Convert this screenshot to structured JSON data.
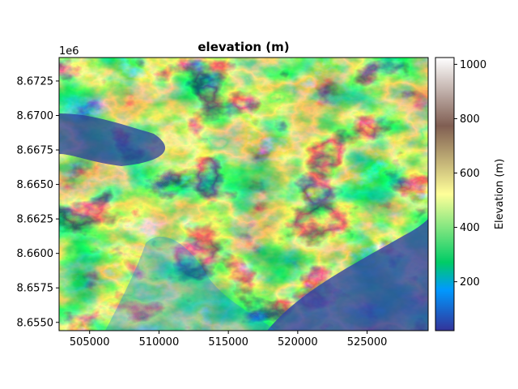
{
  "chart_data": {
    "type": "heatmap",
    "title": "elevation (m)",
    "xlabel": "",
    "ylabel": "",
    "x_ticks": [
      505000,
      510000,
      515000,
      520000,
      525000
    ],
    "y_ticks": [
      8655000,
      8657500,
      8660000,
      8662500,
      8665000,
      8667500,
      8670000,
      8672500
    ],
    "x_tick_labels": [
      "505000",
      "510000",
      "515000",
      "520000",
      "525000"
    ],
    "y_tick_labels": [
      "8.6550",
      "8.6575",
      "8.6600",
      "8.6625",
      "8.6650",
      "8.6675",
      "8.6700",
      "8.6725"
    ],
    "y_offset_text": "1e6",
    "xlim": [
      502800,
      529400
    ],
    "ylim": [
      8654400,
      8674200
    ],
    "colorbar": {
      "label": "Elevation (m)",
      "range": [
        20,
        1025
      ],
      "ticks": [
        200,
        400,
        600,
        800,
        1000
      ],
      "tick_labels": [
        "200",
        "400",
        "600",
        "800",
        "1000"
      ],
      "colormap": "terrain"
    },
    "grid": false
  }
}
